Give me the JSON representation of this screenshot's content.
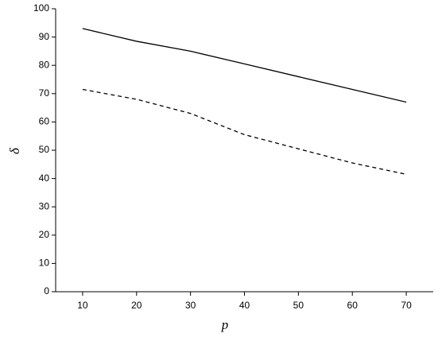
{
  "chart_data": {
    "type": "line",
    "x_label": "p",
    "y_label": "δ",
    "x": [
      10,
      20,
      30,
      40,
      50,
      60,
      70
    ],
    "series": [
      {
        "color": "#000000",
        "style": "solid",
        "values": [
          93,
          88.5,
          85,
          80.5,
          76,
          71.5,
          67
        ]
      },
      {
        "color": "#000000",
        "style": "dashed",
        "values": [
          71.5,
          68,
          63,
          55.5,
          50.5,
          45.5,
          41.5
        ]
      }
    ],
    "xlim": [
      5,
      75
    ],
    "xticks": [
      10,
      20,
      30,
      40,
      50,
      60,
      70
    ],
    "ylim": [
      0,
      100
    ],
    "yticks": [
      0,
      10,
      20,
      30,
      40,
      50,
      60,
      70,
      80,
      90,
      100
    ],
    "grid": false
  }
}
